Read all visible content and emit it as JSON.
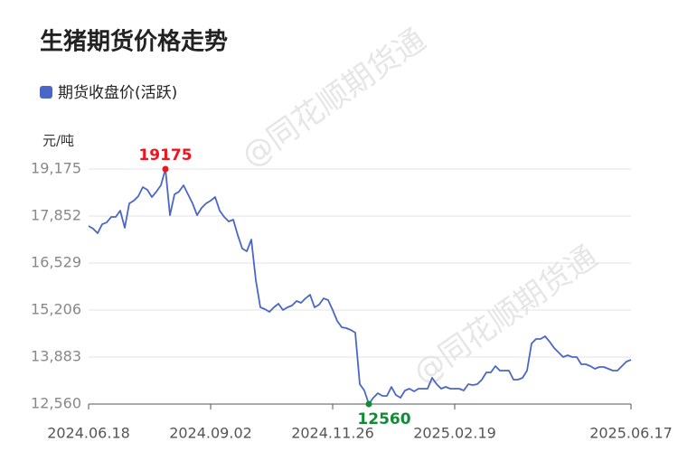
{
  "chart_data": {
    "type": "line",
    "title": "生猪期货价格走势",
    "y_label": "元/吨",
    "watermark": "@同花顺期货通",
    "categories": [
      "2024.06.18",
      null,
      null,
      null,
      null,
      null,
      null,
      null,
      null,
      null,
      null,
      null,
      null,
      null,
      null,
      null,
      null,
      null,
      null,
      null,
      null,
      null,
      null,
      null,
      null,
      null,
      null,
      "2024.09.02",
      null,
      null,
      null,
      null,
      null,
      null,
      null,
      null,
      null,
      null,
      null,
      null,
      null,
      null,
      null,
      null,
      null,
      null,
      null,
      null,
      null,
      null,
      null,
      null,
      null,
      null,
      "2024.11.26",
      null,
      null,
      null,
      null,
      null,
      null,
      null,
      null,
      null,
      null,
      null,
      null,
      null,
      null,
      null,
      null,
      null,
      null,
      null,
      null,
      null,
      null,
      null,
      null,
      null,
      null,
      "2025.02.19",
      null,
      null,
      null,
      null,
      null,
      null,
      null,
      null,
      null,
      null,
      null,
      null,
      null,
      null,
      null,
      null,
      null,
      null,
      null,
      null,
      null,
      null,
      null,
      null,
      null,
      null,
      null,
      null,
      null,
      null,
      null,
      null,
      null,
      null,
      null,
      null,
      null,
      null,
      "2025.06.17"
    ],
    "series": [
      {
        "name": "期货收盘价(活跃)",
        "color": "#4a67c8",
        "values": [
          17572,
          17495,
          17368,
          17622,
          17673,
          17826,
          17826,
          18004,
          17521,
          18208,
          18284,
          18411,
          18666,
          18589,
          18386,
          18538,
          18717,
          19175,
          17877,
          18462,
          18538,
          18717,
          18462,
          18208,
          17877,
          18080,
          18208,
          18284,
          18386,
          18004,
          17826,
          17699,
          17750,
          17317,
          16936,
          16859,
          17190,
          16045,
          15282,
          15231,
          15155,
          15282,
          15384,
          15206,
          15282,
          15333,
          15460,
          15409,
          15536,
          15638,
          15282,
          15358,
          15536,
          15486,
          15206,
          14900,
          14722,
          14697,
          14646,
          14570,
          13120,
          12942,
          12560,
          12738,
          12865,
          12789,
          12789,
          13043,
          12814,
          12738,
          12942,
          12992,
          12916,
          12992,
          12992,
          12992,
          13298,
          13120,
          12992,
          13043,
          12992,
          12992,
          12992,
          12942,
          13120,
          13094,
          13120,
          13247,
          13450,
          13450,
          13628,
          13501,
          13501,
          13501,
          13247,
          13247,
          13298,
          13501,
          14264,
          14392,
          14392,
          14468,
          14315,
          14137,
          14010,
          13883,
          13934,
          13883,
          13883,
          13679,
          13679,
          13628,
          13552,
          13603,
          13603,
          13552,
          13501,
          13501,
          13628,
          13756,
          13806
        ]
      }
    ],
    "ylim": [
      12560,
      19175
    ],
    "yticks": [
      {
        "value": 12560,
        "label": "12,560"
      },
      {
        "value": 13883,
        "label": "13,883"
      },
      {
        "value": 15206,
        "label": "15,206"
      },
      {
        "value": 16529,
        "label": "16,529"
      },
      {
        "value": 17852,
        "label": "17,852"
      },
      {
        "value": 19175,
        "label": "19,175"
      }
    ],
    "grid": true,
    "mark_extremes": true,
    "max_color": "#f0141e",
    "min_color": "#138a36"
  }
}
